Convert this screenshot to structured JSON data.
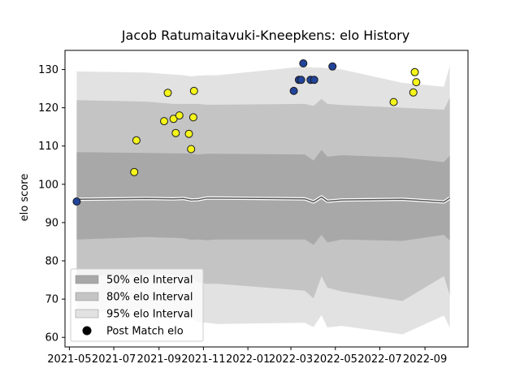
{
  "chart_data": {
    "type": "scatter",
    "title": "Jacob Ratumaitavuki-Kneepkens: elo History",
    "xlabel": "",
    "ylabel": "elo score",
    "xlim": [
      "2021-04-25",
      "2022-10-30"
    ],
    "ylim": [
      57.5,
      135
    ],
    "x_ticks": [
      "2021-05",
      "2021-07",
      "2021-09",
      "2021-11",
      "2022-01",
      "2022-03",
      "2022-05",
      "2022-07",
      "2022-09"
    ],
    "x_tick_dates": [
      "2021-05-01",
      "2021-07-01",
      "2021-09-01",
      "2021-11-01",
      "2022-01-01",
      "2022-03-01",
      "2022-05-01",
      "2022-07-01",
      "2022-09-01"
    ],
    "y_ticks": [
      60,
      70,
      80,
      90,
      100,
      110,
      120,
      130
    ],
    "grid": false,
    "legend_position": "lower-left",
    "colors": {
      "interval_50": "#a8a8a8",
      "interval_80": "#c4c4c4",
      "interval_95": "#e2e2e2",
      "win_marker": "#f5f51a",
      "loss_marker": "#22449a",
      "marker_edge": "#1a1a1a",
      "mean_line": "#555555"
    },
    "legend": [
      {
        "label": "50% elo Interval",
        "kind": "band50"
      },
      {
        "label": "80% elo Interval",
        "kind": "band80"
      },
      {
        "label": "95% elo Interval",
        "kind": "band95"
      },
      {
        "label": "Post Match elo",
        "kind": "marker"
      }
    ],
    "bands": {
      "x": [
        "2021-05-11",
        "2021-08-15",
        "2021-09-21",
        "2021-10-05",
        "2021-10-15",
        "2021-10-25",
        "2021-11-05",
        "2021-11-20",
        "2022-03-20",
        "2022-04-01",
        "2022-04-12",
        "2022-04-20",
        "2022-05-10",
        "2022-08-01",
        "2022-09-27",
        "2022-10-05"
      ],
      "mean": [
        96.1,
        96.3,
        96.2,
        96.3,
        95.9,
        96.0,
        96.4,
        96.4,
        96.2,
        95.4,
        96.7,
        95.6,
        95.9,
        96.1,
        95.4,
        96.4
      ],
      "p50_low": [
        85.6,
        86.2,
        86.0,
        85.9,
        85.5,
        85.6,
        85.4,
        85.6,
        85.6,
        84.2,
        86.8,
        84.8,
        85.6,
        85.2,
        86.8,
        85.3
      ],
      "p50_high": [
        108.4,
        108.2,
        108.1,
        108.1,
        108.0,
        107.8,
        108.0,
        108.0,
        107.8,
        106.2,
        109.0,
        107.2,
        107.6,
        107.0,
        105.8,
        107.5
      ],
      "p80_low": [
        76.0,
        76.5,
        76.2,
        75.8,
        75.6,
        74.4,
        74.0,
        74.0,
        72.2,
        70.2,
        76.0,
        73.0,
        72.0,
        69.5,
        76.0,
        71.0
      ],
      "p80_high": [
        122.0,
        121.6,
        121.0,
        121.0,
        121.0,
        121.0,
        120.8,
        120.8,
        121.0,
        120.5,
        122.3,
        121.0,
        120.7,
        120.0,
        119.5,
        122.6
      ],
      "p95_low": [
        66.2,
        67.0,
        66.6,
        66.0,
        65.0,
        64.0,
        63.8,
        63.5,
        63.8,
        62.7,
        65.8,
        62.6,
        63.0,
        60.8,
        65.7,
        62.5
      ],
      "p95_high": [
        129.5,
        129.2,
        128.7,
        128.5,
        128.2,
        128.4,
        128.5,
        128.5,
        130.8,
        130.5,
        130.5,
        130.3,
        130.0,
        126.5,
        125.5,
        131.0
      ]
    },
    "points": [
      {
        "x": "2021-05-11",
        "y": 95.5,
        "result": "loss"
      },
      {
        "x": "2021-07-29",
        "y": 103.2,
        "result": "win"
      },
      {
        "x": "2021-08-01",
        "y": 111.5,
        "result": "win"
      },
      {
        "x": "2021-09-08",
        "y": 116.5,
        "result": "win"
      },
      {
        "x": "2021-09-13",
        "y": 123.9,
        "result": "win"
      },
      {
        "x": "2021-09-21",
        "y": 117.1,
        "result": "win"
      },
      {
        "x": "2021-09-24",
        "y": 113.4,
        "result": "win"
      },
      {
        "x": "2021-09-29",
        "y": 118.0,
        "result": "win"
      },
      {
        "x": "2021-10-12",
        "y": 113.2,
        "result": "win"
      },
      {
        "x": "2021-10-15",
        "y": 109.2,
        "result": "win"
      },
      {
        "x": "2021-10-18",
        "y": 117.5,
        "result": "win"
      },
      {
        "x": "2021-10-19",
        "y": 124.4,
        "result": "win"
      },
      {
        "x": "2022-03-05",
        "y": 124.4,
        "result": "loss"
      },
      {
        "x": "2022-03-12",
        "y": 127.3,
        "result": "loss"
      },
      {
        "x": "2022-03-15",
        "y": 127.3,
        "result": "loss"
      },
      {
        "x": "2022-03-18",
        "y": 131.6,
        "result": "loss"
      },
      {
        "x": "2022-03-28",
        "y": 127.3,
        "result": "loss"
      },
      {
        "x": "2022-04-02",
        "y": 127.3,
        "result": "loss"
      },
      {
        "x": "2022-04-27",
        "y": 130.8,
        "result": "loss"
      },
      {
        "x": "2022-07-20",
        "y": 121.5,
        "result": "win"
      },
      {
        "x": "2022-08-16",
        "y": 124.0,
        "result": "win"
      },
      {
        "x": "2022-08-18",
        "y": 129.3,
        "result": "win"
      },
      {
        "x": "2022-08-20",
        "y": 126.7,
        "result": "win"
      }
    ]
  }
}
